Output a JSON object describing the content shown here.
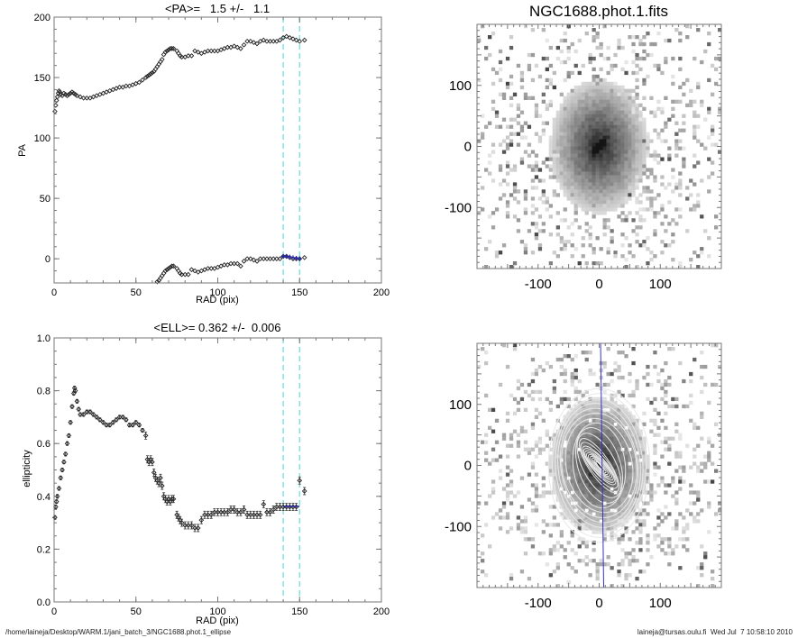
{
  "footer": {
    "path": "/home/laineja/Desktop/WARM.1/jani_batch_3/NGC1688.phot.1_ellipse",
    "user_time": "laineja@tursas.oulu.fi  Wed Jul  7 10:58:10 2010"
  },
  "chart_data": [
    {
      "id": "pa",
      "type": "scatter",
      "title": "<PA>=   1.5 +/-   1.1",
      "xlabel": "RAD (pix)",
      "ylabel": "PA",
      "xlim": [
        0,
        200
      ],
      "ylim": [
        -20,
        200
      ],
      "xticks": [
        0,
        50,
        100,
        150,
        200
      ],
      "yticks": [
        0,
        50,
        100,
        150,
        200
      ],
      "vlines": [
        140,
        150
      ],
      "vline_color": "#66dddd",
      "fit_color": "#2222aa",
      "series": [
        {
          "name": "PA upper branch",
          "x": [
            0.5,
            1,
            1.5,
            2,
            2.5,
            3,
            3.5,
            4,
            5,
            6,
            7,
            8,
            9,
            10,
            11,
            12,
            13,
            14,
            16,
            18,
            20,
            22,
            24,
            26,
            28,
            30,
            32,
            34,
            36,
            38,
            40,
            42,
            44,
            46,
            48,
            50,
            52,
            54,
            56,
            57,
            58,
            59,
            60,
            61,
            62,
            63,
            64,
            65,
            66,
            67,
            68,
            69,
            70,
            71,
            72,
            73,
            75,
            76,
            77,
            78,
            80,
            82,
            84,
            86,
            88,
            90,
            92,
            94,
            96,
            98,
            100,
            102,
            104,
            106,
            108,
            110,
            112,
            114,
            116,
            118,
            120,
            122,
            124,
            126,
            128,
            130,
            132,
            134,
            136,
            138,
            140,
            142,
            144,
            146,
            148,
            150,
            153
          ],
          "y": [
            122,
            127,
            131,
            134,
            137,
            139,
            138,
            136,
            135,
            137,
            136,
            135,
            136,
            137,
            138,
            137,
            136,
            135,
            134,
            133,
            133,
            133,
            134,
            135,
            136,
            137,
            138,
            139,
            140,
            141,
            142,
            142,
            143,
            143,
            144,
            145,
            146,
            148,
            150,
            151,
            152,
            153,
            154,
            155,
            157,
            159,
            161,
            163,
            165,
            169,
            171,
            172,
            173,
            174,
            174,
            174,
            172,
            170,
            168,
            167,
            167,
            168,
            168,
            172,
            171,
            170,
            171,
            172,
            172,
            172,
            172,
            173,
            174,
            175,
            175,
            176,
            175,
            174,
            177,
            180,
            180,
            179,
            178,
            180,
            181,
            180,
            180,
            180,
            180,
            181,
            183,
            184,
            183,
            182,
            181,
            180,
            181
          ]
        },
        {
          "name": "PA lower branch",
          "x": [
            63,
            64,
            65,
            66,
            67,
            68,
            69,
            70,
            71,
            72,
            73,
            75,
            76,
            77,
            78,
            80,
            82,
            84,
            86,
            88,
            90,
            92,
            94,
            96,
            98,
            100,
            102,
            104,
            106,
            108,
            110,
            112,
            114,
            116,
            118,
            120,
            122,
            124,
            126,
            128,
            130,
            132,
            134,
            136,
            138,
            140,
            142,
            144,
            146,
            148,
            150,
            153
          ],
          "y": [
            -19,
            -18,
            -16,
            -14,
            -12,
            -10,
            -9,
            -8,
            -7,
            -6,
            -6,
            -8,
            -10,
            -12,
            -13,
            -13,
            -13,
            -9,
            -10,
            -11,
            -10,
            -9,
            -8,
            -8,
            -8,
            -7,
            -6,
            -5,
            -5,
            -4,
            -4,
            -4,
            -6,
            -2,
            0,
            0,
            -1,
            -2,
            0,
            0,
            0,
            0,
            0,
            0,
            0,
            2,
            2,
            1,
            0,
            0,
            0,
            1
          ]
        },
        {
          "name": "fit range",
          "x": [
            140,
            142,
            144,
            146,
            148,
            150
          ],
          "y": [
            2,
            2,
            1.5,
            1,
            0.5,
            0
          ]
        }
      ]
    },
    {
      "id": "ell",
      "type": "scatter",
      "title": "<ELL>= 0.362 +/-  0.006",
      "xlabel": "RAD (pix)",
      "ylabel": "ellipticity",
      "xlim": [
        0,
        200
      ],
      "ylim": [
        0.0,
        1.0
      ],
      "xticks": [
        0,
        50,
        100,
        150,
        200
      ],
      "yticks": [
        0.0,
        0.2,
        0.4,
        0.6,
        0.8,
        1.0
      ],
      "ytick_labels": [
        "0.0",
        "0.2",
        "0.4",
        "0.6",
        "0.8",
        "1.0"
      ],
      "vlines": [
        140,
        150
      ],
      "series": [
        {
          "name": "ellipticity",
          "x": [
            0.5,
            1,
            1.5,
            2,
            3,
            4,
            5,
            6,
            7,
            8,
            9,
            10,
            11,
            12,
            12.5,
            13,
            14,
            15,
            16,
            18,
            20,
            22,
            24,
            26,
            28,
            30,
            32,
            34,
            36,
            38,
            40,
            42,
            44,
            46,
            48,
            50,
            52,
            54,
            56,
            57,
            58,
            59,
            60,
            61,
            62,
            63,
            64,
            65,
            66,
            67,
            68,
            69,
            70,
            71,
            72,
            73,
            75,
            76,
            77,
            78,
            80,
            82,
            84,
            86,
            88,
            90,
            92,
            94,
            96,
            98,
            100,
            102,
            104,
            106,
            108,
            110,
            112,
            114,
            116,
            118,
            120,
            122,
            124,
            126,
            128,
            130,
            132,
            134,
            136,
            138,
            140,
            142,
            144,
            146,
            148,
            150,
            153
          ],
          "y": [
            0.32,
            0.36,
            0.38,
            0.4,
            0.43,
            0.47,
            0.5,
            0.53,
            0.56,
            0.6,
            0.63,
            0.68,
            0.74,
            0.79,
            0.81,
            0.8,
            0.76,
            0.73,
            0.71,
            0.71,
            0.72,
            0.72,
            0.71,
            0.7,
            0.69,
            0.68,
            0.67,
            0.67,
            0.68,
            0.69,
            0.7,
            0.7,
            0.69,
            0.67,
            0.67,
            0.68,
            0.67,
            0.65,
            0.63,
            0.54,
            0.53,
            0.54,
            0.53,
            0.49,
            0.47,
            0.46,
            0.45,
            0.47,
            0.44,
            0.4,
            0.39,
            0.38,
            0.39,
            0.38,
            0.39,
            0.39,
            0.33,
            0.32,
            0.31,
            0.3,
            0.29,
            0.29,
            0.29,
            0.28,
            0.28,
            0.31,
            0.33,
            0.33,
            0.33,
            0.34,
            0.34,
            0.34,
            0.34,
            0.34,
            0.35,
            0.35,
            0.34,
            0.34,
            0.35,
            0.33,
            0.33,
            0.33,
            0.33,
            0.33,
            0.37,
            0.34,
            0.34,
            0.35,
            0.36,
            0.36,
            0.36,
            0.36,
            0.36,
            0.36,
            0.36,
            0.46,
            0.42
          ]
        },
        {
          "name": "fit range",
          "x": [
            140,
            150
          ],
          "y": [
            0.362,
            0.362
          ]
        }
      ]
    },
    {
      "id": "img-top",
      "type": "heatmap",
      "title": "NGC1688.phot.1.fits",
      "xlim": [
        -200,
        200
      ],
      "ylim": [
        -200,
        200
      ],
      "xticks": [
        -100,
        0,
        100
      ],
      "yticks": [
        -100,
        0,
        100
      ],
      "description": "grayscale galaxy image"
    },
    {
      "id": "img-bottom",
      "type": "heatmap",
      "title": "",
      "xlim": [
        -200,
        200
      ],
      "ylim": [
        -200,
        200
      ],
      "xticks": [
        -100,
        0,
        100
      ],
      "yticks": [
        -100,
        0,
        100
      ],
      "description": "masked galaxy image with fitted isophote ellipses and PA line",
      "pa_line_deg": 1.5,
      "pa_line_color": "#3333cc",
      "ellipses": [
        {
          "a": 8,
          "ell": 0.78,
          "pa": 140
        },
        {
          "a": 12,
          "ell": 0.8,
          "pa": 138
        },
        {
          "a": 16,
          "ell": 0.78,
          "pa": 137
        },
        {
          "a": 20,
          "ell": 0.74,
          "pa": 136
        },
        {
          "a": 24,
          "ell": 0.72,
          "pa": 135
        },
        {
          "a": 28,
          "ell": 0.71,
          "pa": 135
        },
        {
          "a": 32,
          "ell": 0.7,
          "pa": 136
        },
        {
          "a": 36,
          "ell": 0.69,
          "pa": 138
        },
        {
          "a": 40,
          "ell": 0.7,
          "pa": 140
        },
        {
          "a": 46,
          "ell": 0.68,
          "pa": 143
        },
        {
          "a": 52,
          "ell": 0.67,
          "pa": 146
        },
        {
          "a": 58,
          "ell": 0.54,
          "pa": 152
        },
        {
          "a": 64,
          "ell": 0.46,
          "pa": 162
        },
        {
          "a": 70,
          "ell": 0.39,
          "pa": 173
        },
        {
          "a": 78,
          "ell": 0.31,
          "pa": 168
        },
        {
          "a": 86,
          "ell": 0.29,
          "pa": 172
        },
        {
          "a": 94,
          "ell": 0.33,
          "pa": 172
        },
        {
          "a": 102,
          "ell": 0.34,
          "pa": 174
        },
        {
          "a": 110,
          "ell": 0.35,
          "pa": 176
        },
        {
          "a": 118,
          "ell": 0.35,
          "pa": 180
        },
        {
          "a": 126,
          "ell": 0.34,
          "pa": 180
        }
      ]
    }
  ]
}
